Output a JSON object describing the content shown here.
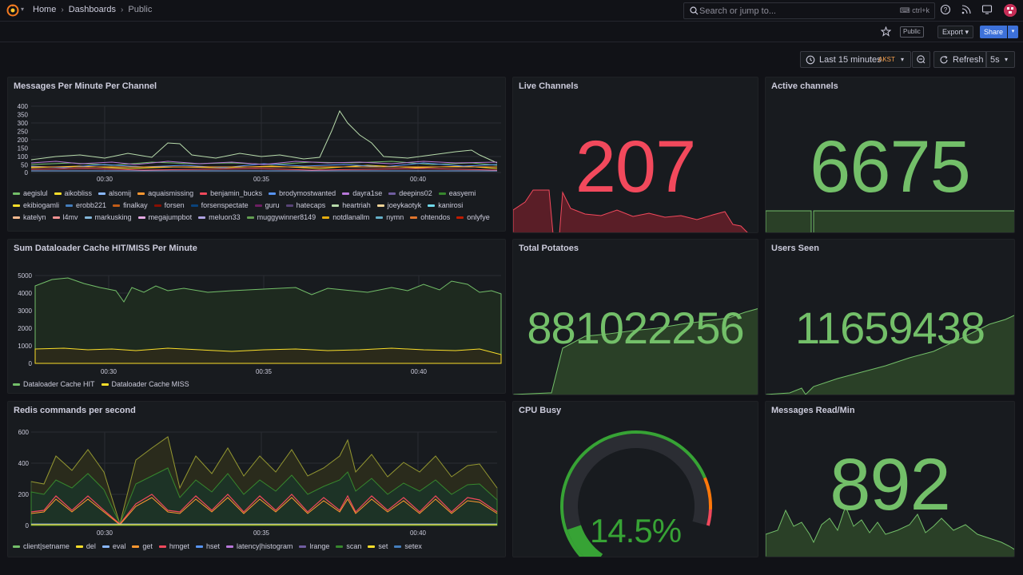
{
  "nav": {
    "breadcrumbs": [
      "Home",
      "Dashboards",
      "Public"
    ],
    "search_placeholder": "Search or jump to...",
    "search_shortcut": "ctrl+k"
  },
  "toolbar": {
    "public_badge": "Public",
    "export_label": "Export",
    "share_label": "Share",
    "time_range": "Last 15 minutes",
    "timezone": "AKST",
    "refresh_label": "Refresh",
    "refresh_interval": "5s"
  },
  "colors": {
    "red": "#f2495c",
    "green": "#73bf69",
    "gauge_green": "#37a335",
    "yellow": "#fade2a",
    "orange": "#ff9830",
    "blue": "#5794f2"
  },
  "panels": {
    "messages_per_minute": {
      "title": "Messages Per Minute Per Channel",
      "legend": [
        {
          "name": "aegislul",
          "color": "#73bf69"
        },
        {
          "name": "aikobliss",
          "color": "#fade2a"
        },
        {
          "name": "alsomij",
          "color": "#8ab8ff"
        },
        {
          "name": "aquaismissing",
          "color": "#ff9830"
        },
        {
          "name": "benjamin_bucks",
          "color": "#f2495c"
        },
        {
          "name": "brodymostwanted",
          "color": "#5794f2"
        },
        {
          "name": "dayra1se",
          "color": "#b877d9"
        },
        {
          "name": "deepins02",
          "color": "#705da0"
        },
        {
          "name": "easyemi",
          "color": "#37872d"
        },
        {
          "name": "ekibiogamli",
          "color": "#fade2a"
        },
        {
          "name": "erobb221",
          "color": "#447ebc"
        },
        {
          "name": "finalkay",
          "color": "#c15c17"
        },
        {
          "name": "forsen",
          "color": "#890f02"
        },
        {
          "name": "forsenspectate",
          "color": "#0a437c"
        },
        {
          "name": "guru",
          "color": "#6d1f62"
        },
        {
          "name": "hatecaps",
          "color": "#584477"
        },
        {
          "name": "heartriah",
          "color": "#b7dbab"
        },
        {
          "name": "joeykaotyk",
          "color": "#f4d598"
        },
        {
          "name": "kanirosi",
          "color": "#70dbed"
        },
        {
          "name": "katelyn",
          "color": "#f9ba8f"
        },
        {
          "name": "l4mv",
          "color": "#f29191"
        },
        {
          "name": "markusking",
          "color": "#82b5d8"
        },
        {
          "name": "megajumpbot",
          "color": "#e5a8e2"
        },
        {
          "name": "meluon33",
          "color": "#aea2e0"
        },
        {
          "name": "muggywinner8149",
          "color": "#629e51"
        },
        {
          "name": "notdlanallm",
          "color": "#e5ac0e"
        },
        {
          "name": "nymn",
          "color": "#64b0c8"
        },
        {
          "name": "ohtendos",
          "color": "#e0752d"
        },
        {
          "name": "onlyfye",
          "color": "#bf1b00"
        }
      ],
      "y_ticks": [
        "400",
        "350",
        "300",
        "250",
        "200",
        "150",
        "100",
        "50",
        "0"
      ],
      "x_ticks": [
        "00:30",
        "00:35",
        "00:40"
      ]
    },
    "live_channels": {
      "title": "Live Channels",
      "value": "207",
      "color": "#f2495c"
    },
    "active_channels": {
      "title": "Active channels",
      "value": "6675",
      "color": "#73bf69"
    },
    "dataloader": {
      "title": "Sum Dataloader Cache HIT/MISS Per Minute",
      "legend": [
        {
          "name": "Dataloader Cache HIT",
          "color": "#73bf69"
        },
        {
          "name": "Dataloader Cache MISS",
          "color": "#fade2a"
        }
      ],
      "y_ticks": [
        "5000",
        "4000",
        "3000",
        "2000",
        "1000",
        "0"
      ],
      "x_ticks": [
        "00:30",
        "00:35",
        "00:40"
      ]
    },
    "total_potatoes": {
      "title": "Total Potatoes",
      "value": "881022256",
      "color": "#73bf69"
    },
    "users_seen": {
      "title": "Users Seen",
      "value": "11659438",
      "color": "#73bf69"
    },
    "redis": {
      "title": "Redis commands per second",
      "legend": [
        {
          "name": "client|setname",
          "color": "#73bf69"
        },
        {
          "name": "del",
          "color": "#fade2a"
        },
        {
          "name": "eval",
          "color": "#8ab8ff"
        },
        {
          "name": "get",
          "color": "#ff9830"
        },
        {
          "name": "hmget",
          "color": "#f2495c"
        },
        {
          "name": "hset",
          "color": "#5794f2"
        },
        {
          "name": "latency|histogram",
          "color": "#b877d9"
        },
        {
          "name": "lrange",
          "color": "#705da0"
        },
        {
          "name": "scan",
          "color": "#37872d"
        },
        {
          "name": "set",
          "color": "#fade2a"
        },
        {
          "name": "setex",
          "color": "#447ebc"
        }
      ],
      "y_ticks": [
        "600",
        "400",
        "200",
        "0"
      ],
      "x_ticks": [
        "00:30",
        "00:35",
        "00:40"
      ]
    },
    "cpu_busy": {
      "title": "CPU Busy",
      "value": "14.5%",
      "percent": 14.5
    },
    "messages_read": {
      "title": "Messages Read/Min",
      "value": "892",
      "color": "#73bf69"
    }
  }
}
